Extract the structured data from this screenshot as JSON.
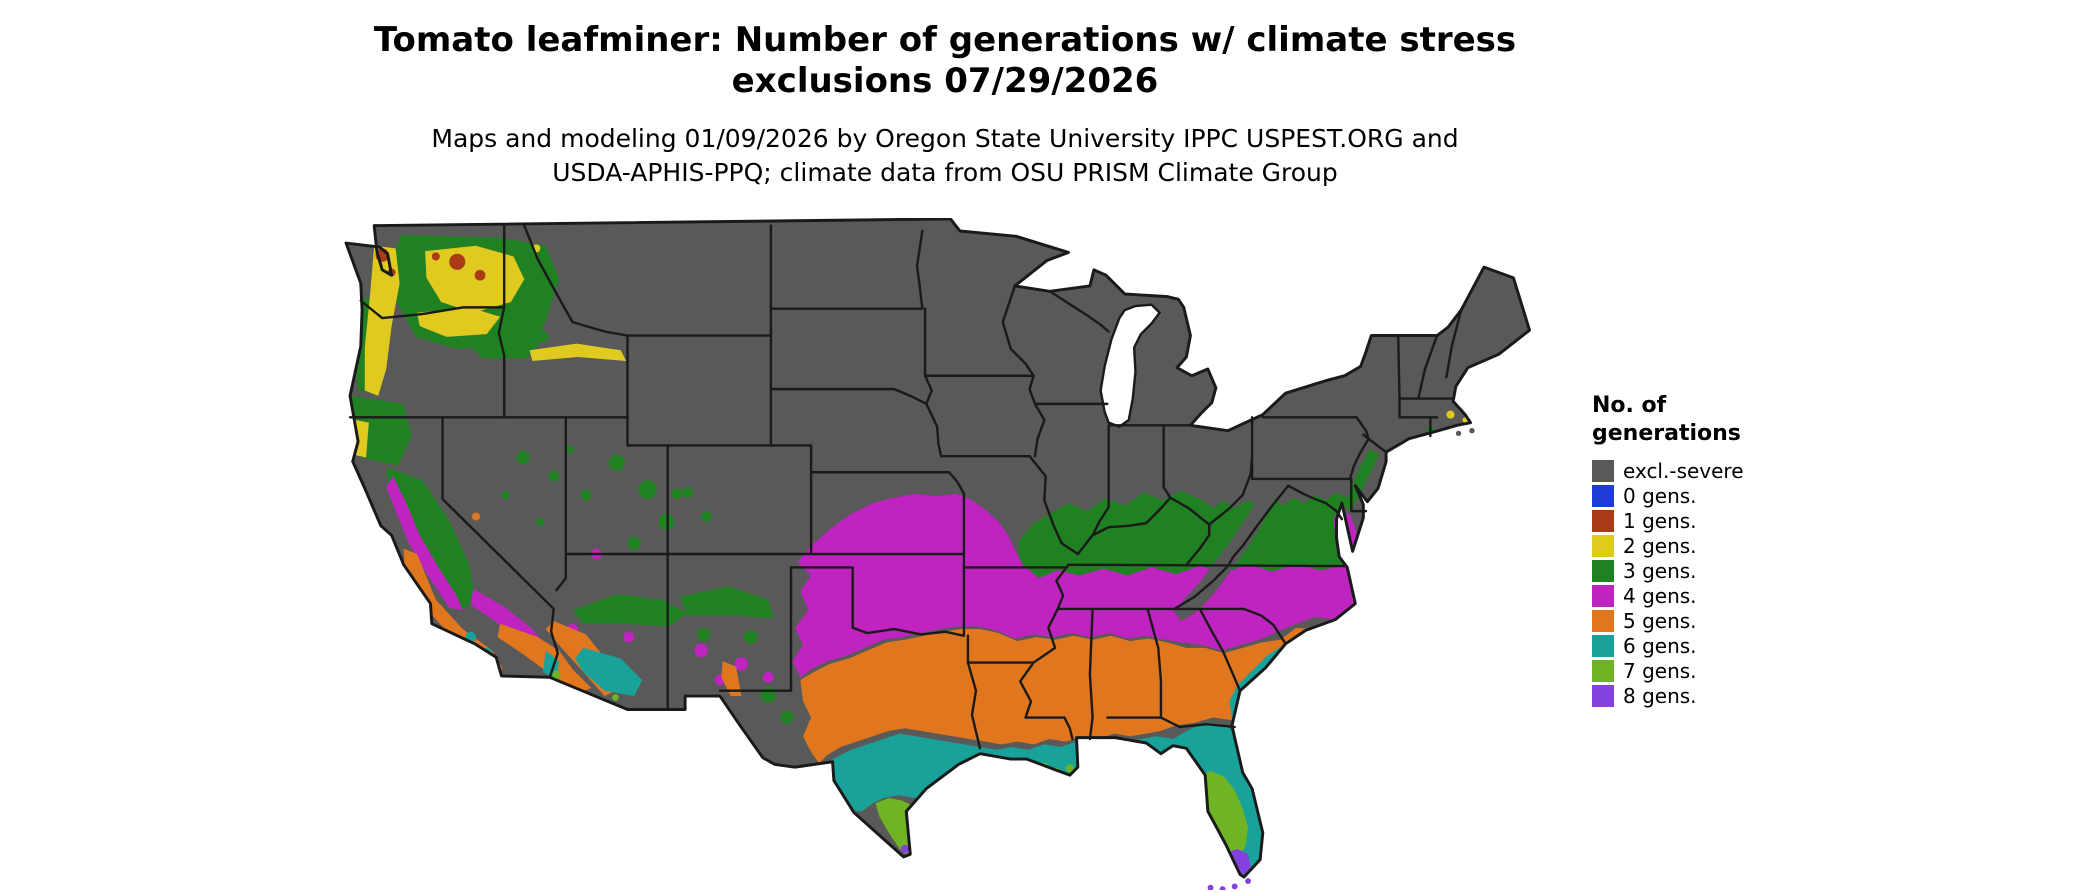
{
  "title": {
    "line1": "Tomato leafminer: Number of generations w/ climate stress",
    "line2": "exclusions 07/29/2026"
  },
  "subtitle": {
    "line1": "Maps and modeling 01/09/2026 by Oregon State University IPPC USPEST.ORG and",
    "line2": "USDA-APHIS-PPQ; climate data from OSU PRISM Climate Group"
  },
  "legend": {
    "title_line1": "No. of",
    "title_line2": "generations",
    "items": [
      {
        "key": "excl",
        "label": "excl.-severe",
        "color": "#595959"
      },
      {
        "key": "g0",
        "label": "0 gens.",
        "color": "#1f3dd6"
      },
      {
        "key": "g1",
        "label": "1 gens.",
        "color": "#ab3a16"
      },
      {
        "key": "g2",
        "label": "2 gens.",
        "color": "#e0ca20"
      },
      {
        "key": "g3",
        "label": "3 gens.",
        "color": "#208123"
      },
      {
        "key": "g4",
        "label": "4 gens.",
        "color": "#c024c0"
      },
      {
        "key": "g5",
        "label": "5 gens.",
        "color": "#e0771e"
      },
      {
        "key": "g6",
        "label": "6 gens.",
        "color": "#19a29a"
      },
      {
        "key": "g7",
        "label": "7 gens.",
        "color": "#6fb424"
      },
      {
        "key": "g8",
        "label": "8 gens.",
        "color": "#8540e0"
      }
    ]
  }
}
